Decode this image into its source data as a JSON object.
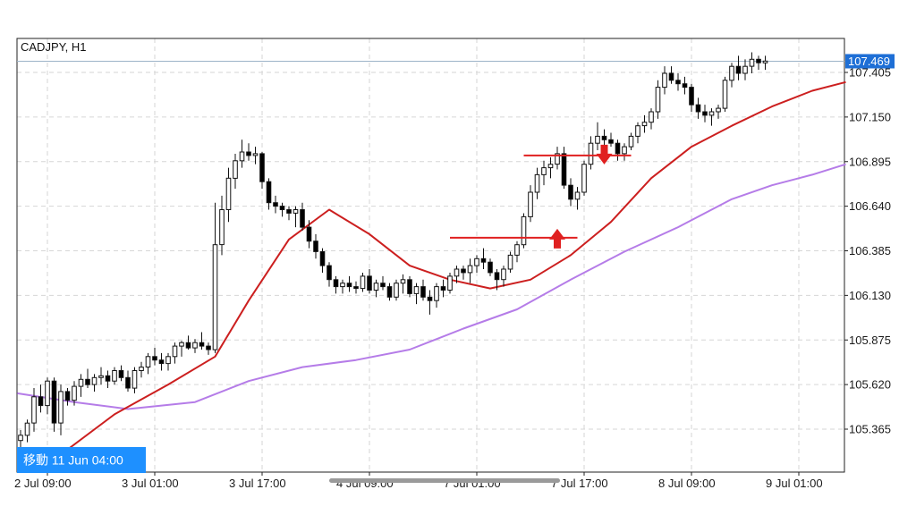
{
  "chart_data": {
    "type": "candlestick",
    "title": "CADJPY, H1",
    "symbol": "CADJPY",
    "timeframe": "H1",
    "current_price": "107.469",
    "y_ticks": [
      "107.405",
      "107.150",
      "106.895",
      "106.640",
      "106.385",
      "106.130",
      "105.875",
      "105.620",
      "105.365"
    ],
    "y_tick_values": [
      107.405,
      107.15,
      106.895,
      106.64,
      106.385,
      106.13,
      105.875,
      105.62,
      105.365
    ],
    "ylim": [
      105.15,
      107.53
    ],
    "x_ticks": [
      "2 Jul 09:00",
      "3 Jul 01:00",
      "3 Jul 17:00",
      "4 Jul 09:00",
      "7 Jul 01:00",
      "7 Jul 17:00",
      "8 Jul 09:00",
      "9 Jul 01:00"
    ],
    "x_tick_index": [
      4,
      20,
      36,
      52,
      68,
      84,
      100,
      116
    ],
    "x_range": [
      -0.5,
      124
    ],
    "ohlc": [
      [
        105.3,
        105.36,
        105.26,
        105.33
      ],
      [
        105.33,
        105.42,
        105.29,
        105.4
      ],
      [
        105.4,
        105.6,
        105.35,
        105.55
      ],
      [
        105.55,
        105.62,
        105.46,
        105.5
      ],
      [
        105.5,
        105.66,
        105.45,
        105.64
      ],
      [
        105.64,
        105.66,
        105.35,
        105.4
      ],
      [
        105.4,
        105.62,
        105.33,
        105.58
      ],
      [
        105.58,
        105.6,
        105.5,
        105.53
      ],
      [
        105.53,
        105.64,
        105.5,
        105.61
      ],
      [
        105.61,
        105.68,
        105.55,
        105.65
      ],
      [
        105.65,
        105.71,
        105.6,
        105.62
      ],
      [
        105.62,
        105.68,
        105.58,
        105.66
      ],
      [
        105.66,
        105.72,
        105.62,
        105.67
      ],
      [
        105.67,
        105.7,
        105.6,
        105.64
      ],
      [
        105.64,
        105.72,
        105.62,
        105.7
      ],
      [
        105.7,
        105.73,
        105.64,
        105.66
      ],
      [
        105.66,
        105.7,
        105.58,
        105.6
      ],
      [
        105.6,
        105.72,
        105.57,
        105.7
      ],
      [
        105.7,
        105.75,
        105.66,
        105.72
      ],
      [
        105.72,
        105.8,
        105.68,
        105.78
      ],
      [
        105.78,
        105.83,
        105.73,
        105.76
      ],
      [
        105.76,
        105.8,
        105.7,
        105.74
      ],
      [
        105.74,
        105.8,
        105.7,
        105.78
      ],
      [
        105.78,
        105.86,
        105.74,
        105.84
      ],
      [
        105.84,
        105.87,
        105.78,
        105.86
      ],
      [
        105.86,
        105.9,
        105.82,
        105.83
      ],
      [
        105.83,
        105.88,
        105.8,
        105.86
      ],
      [
        105.86,
        105.92,
        105.82,
        105.84
      ],
      [
        105.84,
        105.86,
        105.79,
        105.82
      ],
      [
        105.82,
        106.66,
        105.8,
        106.42
      ],
      [
        106.42,
        106.7,
        106.36,
        106.62
      ],
      [
        106.62,
        106.86,
        106.55,
        106.8
      ],
      [
        106.8,
        106.94,
        106.74,
        106.9
      ],
      [
        106.9,
        107.02,
        106.86,
        106.95
      ],
      [
        106.95,
        107.0,
        106.9,
        106.93
      ],
      [
        106.93,
        106.98,
        106.88,
        106.94
      ],
      [
        106.94,
        106.95,
        106.74,
        106.78
      ],
      [
        106.78,
        106.8,
        106.62,
        106.66
      ],
      [
        106.66,
        106.7,
        106.6,
        106.64
      ],
      [
        106.64,
        106.66,
        106.58,
        106.62
      ],
      [
        106.62,
        106.64,
        106.56,
        106.6
      ],
      [
        106.6,
        106.64,
        106.52,
        106.62
      ],
      [
        106.62,
        106.66,
        106.5,
        106.52
      ],
      [
        106.52,
        106.56,
        106.4,
        106.44
      ],
      [
        106.44,
        106.48,
        106.34,
        106.38
      ],
      [
        106.38,
        106.4,
        106.26,
        106.3
      ],
      [
        106.3,
        106.32,
        106.18,
        106.22
      ],
      [
        106.22,
        106.24,
        106.14,
        106.18
      ],
      [
        106.18,
        106.22,
        106.14,
        106.2
      ],
      [
        106.2,
        106.24,
        106.15,
        106.18
      ],
      [
        106.18,
        106.21,
        106.14,
        106.17
      ],
      [
        106.17,
        106.26,
        106.15,
        106.24
      ],
      [
        106.24,
        106.28,
        106.14,
        106.16
      ],
      [
        106.16,
        106.22,
        106.12,
        106.2
      ],
      [
        106.2,
        106.24,
        106.16,
        106.18
      ],
      [
        106.18,
        106.2,
        106.1,
        106.12
      ],
      [
        106.12,
        106.22,
        106.1,
        106.2
      ],
      [
        106.2,
        106.25,
        106.14,
        106.22
      ],
      [
        106.22,
        106.24,
        106.12,
        106.14
      ],
      [
        106.14,
        106.2,
        106.08,
        106.18
      ],
      [
        106.18,
        106.22,
        106.1,
        106.12
      ],
      [
        106.12,
        106.16,
        106.02,
        106.1
      ],
      [
        106.1,
        106.2,
        106.06,
        106.18
      ],
      [
        106.18,
        106.22,
        106.12,
        106.16
      ],
      [
        106.16,
        106.26,
        106.14,
        106.24
      ],
      [
        106.24,
        106.3,
        106.2,
        106.28
      ],
      [
        106.28,
        106.3,
        106.22,
        106.26
      ],
      [
        106.26,
        106.34,
        106.2,
        106.3
      ],
      [
        106.3,
        106.36,
        106.26,
        106.34
      ],
      [
        106.34,
        106.4,
        106.28,
        106.32
      ],
      [
        106.32,
        106.34,
        106.24,
        106.26
      ],
      [
        106.26,
        106.28,
        106.16,
        106.22
      ],
      [
        106.22,
        106.3,
        106.18,
        106.28
      ],
      [
        106.28,
        106.38,
        106.26,
        106.36
      ],
      [
        106.36,
        106.44,
        106.32,
        106.42
      ],
      [
        106.42,
        106.6,
        106.4,
        106.58
      ],
      [
        106.58,
        106.76,
        106.55,
        106.72
      ],
      [
        106.72,
        106.86,
        106.68,
        106.82
      ],
      [
        106.82,
        106.9,
        106.76,
        106.86
      ],
      [
        106.86,
        106.92,
        106.8,
        106.88
      ],
      [
        106.88,
        106.98,
        106.85,
        106.94
      ],
      [
        106.94,
        106.98,
        106.74,
        106.76
      ],
      [
        106.76,
        106.8,
        106.64,
        106.68
      ],
      [
        106.68,
        106.75,
        106.62,
        106.72
      ],
      [
        106.72,
        106.9,
        106.7,
        106.88
      ],
      [
        106.88,
        107.04,
        106.85,
        107.0
      ],
      [
        107.0,
        107.12,
        106.96,
        107.04
      ],
      [
        107.04,
        107.08,
        106.98,
        107.02
      ],
      [
        107.02,
        107.06,
        106.98,
        107.0
      ],
      [
        107.0,
        107.02,
        106.9,
        106.94
      ],
      [
        106.94,
        107.0,
        106.9,
        106.98
      ],
      [
        106.98,
        107.06,
        106.96,
        107.04
      ],
      [
        107.04,
        107.12,
        107.0,
        107.1
      ],
      [
        107.1,
        107.16,
        107.06,
        107.12
      ],
      [
        107.12,
        107.2,
        107.08,
        107.18
      ],
      [
        107.18,
        107.36,
        107.14,
        107.32
      ],
      [
        107.32,
        107.44,
        107.28,
        107.4
      ],
      [
        107.4,
        107.44,
        107.34,
        107.36
      ],
      [
        107.36,
        107.4,
        107.3,
        107.34
      ],
      [
        107.34,
        107.38,
        107.28,
        107.32
      ],
      [
        107.32,
        107.34,
        107.18,
        107.22
      ],
      [
        107.22,
        107.26,
        107.14,
        107.18
      ],
      [
        107.18,
        107.22,
        107.12,
        107.16
      ],
      [
        107.16,
        107.2,
        107.1,
        107.18
      ],
      [
        107.18,
        107.22,
        107.14,
        107.2
      ],
      [
        107.2,
        107.38,
        107.18,
        107.36
      ],
      [
        107.36,
        107.46,
        107.32,
        107.44
      ],
      [
        107.44,
        107.5,
        107.36,
        107.4
      ],
      [
        107.4,
        107.48,
        107.36,
        107.44
      ],
      [
        107.44,
        107.52,
        107.4,
        107.48
      ],
      [
        107.48,
        107.5,
        107.42,
        107.46
      ],
      [
        107.46,
        107.5,
        107.42,
        107.47
      ]
    ],
    "ma_fast": [
      [
        -0.5,
        105.15
      ],
      [
        6,
        105.22
      ],
      [
        14,
        105.45
      ],
      [
        22,
        105.62
      ],
      [
        29,
        105.78
      ],
      [
        34,
        106.1
      ],
      [
        40,
        106.45
      ],
      [
        46,
        106.62
      ],
      [
        52,
        106.48
      ],
      [
        58,
        106.3
      ],
      [
        64,
        106.22
      ],
      [
        70,
        106.17
      ],
      [
        76,
        106.22
      ],
      [
        82,
        106.36
      ],
      [
        88,
        106.55
      ],
      [
        94,
        106.8
      ],
      [
        100,
        106.98
      ],
      [
        106,
        107.1
      ],
      [
        112,
        107.21
      ],
      [
        118,
        107.3
      ],
      [
        123,
        107.35
      ]
    ],
    "ma_slow": [
      [
        -0.5,
        105.57
      ],
      [
        8,
        105.52
      ],
      [
        16,
        105.48
      ],
      [
        26,
        105.52
      ],
      [
        34,
        105.64
      ],
      [
        42,
        105.72
      ],
      [
        50,
        105.76
      ],
      [
        58,
        105.82
      ],
      [
        66,
        105.94
      ],
      [
        74,
        106.05
      ],
      [
        82,
        106.22
      ],
      [
        90,
        106.38
      ],
      [
        98,
        106.52
      ],
      [
        106,
        106.68
      ],
      [
        112,
        106.76
      ],
      [
        118,
        106.82
      ],
      [
        123,
        106.88
      ]
    ],
    "series": [
      {
        "name": "",
        "color": "#cc1f1f"
      },
      {
        "name": "",
        "color": "#b57ce8"
      }
    ],
    "horizontal_lines": [
      {
        "y": 106.93,
        "x_from": 75,
        "x_to": 91
      },
      {
        "y": 106.46,
        "x_from": 64,
        "x_to": 83
      }
    ],
    "arrows": [
      {
        "direction": "down",
        "x": 87,
        "y": 106.93
      },
      {
        "direction": "up",
        "x": 80,
        "y": 106.46
      }
    ],
    "legend": "none",
    "grid": true,
    "navigate_label": "移動 11 Jun 04:00",
    "colors": {
      "candle_up": "#ffffff",
      "candle_down": "#000000",
      "price_tag": "#1e6fd6",
      "price_line": "#9db3c8",
      "navigate_box": "#1e90ff",
      "signal": "#e02020",
      "scrollbar": "#9a9a9a"
    }
  }
}
